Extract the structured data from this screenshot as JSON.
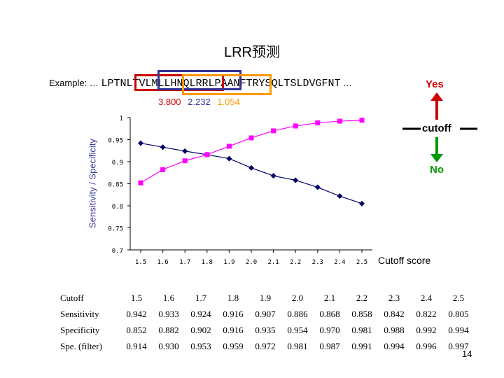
{
  "title": "LRR预测",
  "example": {
    "prefix": "Example: …",
    "sequence": "LPTNLTVLMLLHNQLRRLPAANFTRYSQLTSLDVGFNT",
    "suffix": "…",
    "box_colors": [
      "#cc0000",
      "#333399",
      "#ff9900"
    ]
  },
  "scores": [
    {
      "text": "3.800",
      "color": "#cc0000"
    },
    {
      "text": "2.232",
      "color": "#333399"
    },
    {
      "text": "1.054",
      "color": "#ff9900"
    }
  ],
  "decision": {
    "yes": "Yes",
    "cutoff": "cutoff",
    "no": "No",
    "yes_color": "#cc0000",
    "no_color": "#009900"
  },
  "page_number": "14",
  "chart_data": {
    "type": "line",
    "title": "",
    "xlabel": "Cutoff score",
    "ylabel": "Sensitivity / Specificity",
    "x": [
      1.5,
      1.6,
      1.7,
      1.8,
      1.9,
      2.0,
      2.1,
      2.2,
      2.3,
      2.4,
      2.5
    ],
    "x_tick_labels": [
      "1.5",
      "1.6",
      "1.7",
      "1.8",
      "1.9",
      "2.0",
      "2.1",
      "2.2",
      "2.3",
      "2.4",
      "2.5"
    ],
    "ylim": [
      0.7,
      1.0
    ],
    "y_ticks": [
      0.7,
      0.75,
      0.8,
      0.85,
      0.9,
      0.95,
      1.0
    ],
    "y_tick_labels": [
      "0.7",
      "0.75",
      "0.8",
      "0.85",
      "0.9",
      "0.95",
      "1"
    ],
    "grid": false,
    "series": [
      {
        "values": [
          0.942,
          0.933,
          0.924,
          0.916,
          0.907,
          0.886,
          0.868,
          0.858,
          0.842,
          0.822,
          0.805
        ],
        "color": "#000066",
        "marker": "diamond"
      },
      {
        "values": [
          0.852,
          0.882,
          0.902,
          0.916,
          0.935,
          0.954,
          0.97,
          0.981,
          0.988,
          0.992,
          0.994
        ],
        "color": "#ff00ff",
        "marker": "square"
      }
    ]
  },
  "table": {
    "header": [
      "Cutoff",
      "1.5",
      "1.6",
      "1.7",
      "1.8",
      "1.9",
      "2.0",
      "2.1",
      "2.2",
      "2.3",
      "2.4",
      "2.5"
    ],
    "rows": [
      [
        "Sensitivity",
        "0.942",
        "0.933",
        "0.924",
        "0.916",
        "0.907",
        "0.886",
        "0.868",
        "0.858",
        "0.842",
        "0.822",
        "0.805"
      ],
      [
        "Specificity",
        "0.852",
        "0.882",
        "0.902",
        "0.916",
        "0.935",
        "0.954",
        "0.970",
        "0.981",
        "0.988",
        "0.992",
        "0.994"
      ],
      [
        "Spe. (filter)",
        "0.914",
        "0.930",
        "0.953",
        "0.959",
        "0.972",
        "0.981",
        "0.987",
        "0.991",
        "0.994",
        "0.996",
        "0.997"
      ]
    ]
  }
}
